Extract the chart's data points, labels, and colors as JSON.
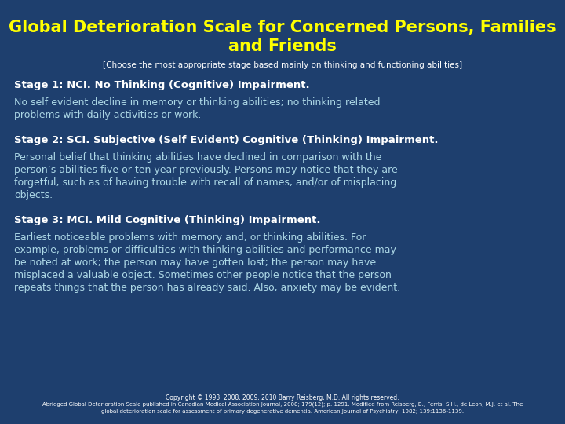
{
  "bg_color": "#1e3f6e",
  "title_color": "#ffff00",
  "subtitle_color": "#ffffff",
  "heading_color": "#ffffff",
  "body_color": "#add8e6",
  "footer_color": "#ffffff",
  "title": "Global Deterioration Scale for Concerned Persons, Families\nand Friends",
  "subtitle": "[Choose the most appropriate stage based mainly on thinking and functioning abilities]",
  "stage1_heading": "Stage 1: NCI. No Thinking (Cognitive) Impairment.",
  "stage1_body": "No self evident decline in memory or thinking abilities; no thinking related\nproblems with daily activities or work.",
  "stage2_heading": "Stage 2: SCI. Subjective (Self Evident) Cognitive (Thinking) Impairment.",
  "stage2_body": "Personal belief that thinking abilities have declined in comparison with the\nperson’s abilities five or ten year previously. Persons may notice that they are\nforgetful, such as of having trouble with recall of names, and/or of misplacing\nobjects.",
  "stage3_heading": "Stage 3: MCI. Mild Cognitive (Thinking) Impairment.",
  "stage3_body": "Earliest noticeable problems with memory and, or thinking abilities. For\nexample, problems or difficulties with thinking abilities and performance may\nbe noted at work; the person may have gotten lost; the person may have\nmisplaced a valuable object. Sometimes other people notice that the person\nrepeats things that the person has already said. Also, anxiety may be evident.",
  "footer_line1": "Copyright © 1993, 2008, 2009, 2010 Barry Reisberg, M.D. All rights reserved.",
  "footer_line2": "Abridged Global Deterioration Scale published in Canadian Medical Association Journal, 2008; 179(12); p. 1291. Modified from Reisberg, B., Ferris, S.H., de Leon, M.J. et al. The",
  "footer_line3": "global deterioration scale for assessment of primary degenerative dementia. American Journal of Psychiatry, 1982; 139:1136-1139."
}
